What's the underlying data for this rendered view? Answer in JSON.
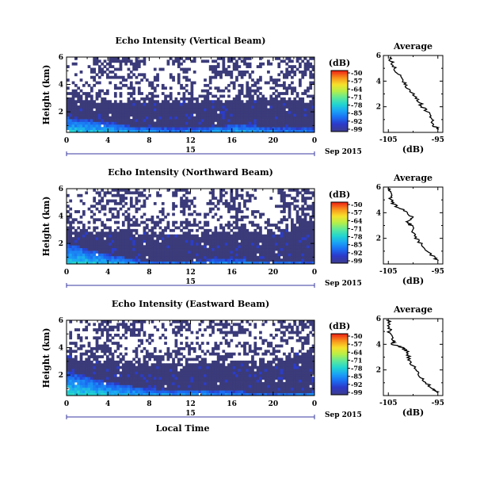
{
  "chart_data": [
    {
      "type": "heatmap",
      "title": "Echo Intensity (Vertical Beam)",
      "ylabel": "Height (km)",
      "x_ticks": [
        "0",
        "4",
        "8",
        "12",
        "16",
        "20",
        "0"
      ],
      "y_ticks": [
        "6",
        "4",
        "2"
      ],
      "date_day": "15",
      "date_month": "Sep 2015",
      "xlim": [
        0,
        24
      ],
      "ylim": [
        0.5,
        6
      ],
      "colorbar": {
        "unit": "(dB)",
        "ticks": [
          "-50",
          "-57",
          "-64",
          "-71",
          "-78",
          "-85",
          "-92",
          "-99"
        ]
      },
      "fill": {
        "dense_top": [
          3.0,
          2.8,
          2.7,
          2.7,
          2.8,
          2.9,
          3.0,
          2.6
        ],
        "sparse_top": 4.5,
        "strong_top": [
          1.6,
          1.3,
          0.9,
          0.8,
          0.9,
          1.1,
          0.8,
          0.8
        ]
      },
      "profile": {
        "title": "Average",
        "xlabel": "(dB)",
        "x_ticks": [
          "-105",
          "-95"
        ],
        "y_ticks": [
          "6",
          "4",
          "2"
        ],
        "xlim": [
          -106,
          -94
        ],
        "ylim": [
          0,
          6
        ],
        "height": [
          0.25,
          0.5,
          1.0,
          1.5,
          2.0,
          2.5,
          3.0,
          3.5,
          4.0,
          4.5,
          5.0,
          5.5,
          5.9
        ],
        "value": [
          -94.8,
          -95.7,
          -96.4,
          -97.0,
          -98.1,
          -99.0,
          -100.2,
          -101.3,
          -102.1,
          -102.9,
          -103.7,
          -104.3,
          -104.8
        ]
      }
    },
    {
      "type": "heatmap",
      "title": "Echo Intensity (Northward Beam)",
      "ylabel": "Height (km)",
      "x_ticks": [
        "0",
        "4",
        "8",
        "12",
        "16",
        "20",
        "0"
      ],
      "y_ticks": [
        "6",
        "4",
        "2"
      ],
      "date_day": "15",
      "date_month": "Sep 2015",
      "xlim": [
        0,
        24
      ],
      "ylim": [
        0.5,
        6
      ],
      "colorbar": {
        "unit": "(dB)",
        "ticks": [
          "-50",
          "-57",
          "-64",
          "-71",
          "-78",
          "-85",
          "-92",
          "-99"
        ]
      },
      "fill": {
        "dense_top": [
          3.0,
          2.8,
          2.7,
          2.6,
          2.6,
          2.8,
          2.7,
          3.6
        ],
        "sparse_top": 4.5,
        "strong_top": [
          2.0,
          1.3,
          0.8,
          0.7,
          0.8,
          0.8,
          0.7,
          0.7
        ]
      },
      "profile": {
        "title": "Average",
        "xlabel": "(dB)",
        "x_ticks": [
          "-105",
          "-95"
        ],
        "y_ticks": [
          "6",
          "4",
          "2"
        ],
        "xlim": [
          -106,
          -94
        ],
        "ylim": [
          0,
          6
        ],
        "height": [
          0.25,
          0.5,
          1.0,
          1.5,
          2.0,
          2.5,
          3.0,
          3.3,
          3.6,
          4.0,
          4.4,
          4.8,
          5.2,
          5.6,
          5.9
        ],
        "value": [
          -94.8,
          -95.8,
          -97.1,
          -98.4,
          -99.3,
          -100.1,
          -100.4,
          -101.2,
          -100.3,
          -100.9,
          -103.0,
          -104.2,
          -104.6,
          -104.9,
          -105.0
        ]
      }
    },
    {
      "type": "heatmap",
      "title": "Echo Intensity (Eastward Beam)",
      "ylabel": "Height (km)",
      "x_ticks": [
        "0",
        "4",
        "8",
        "12",
        "16",
        "20",
        "0"
      ],
      "y_ticks": [
        "6",
        "4",
        "2"
      ],
      "date_day": "15",
      "date_month": "Sep 2015",
      "xaxis_label": "Local Time",
      "xlim": [
        0,
        24
      ],
      "ylim": [
        0.5,
        6
      ],
      "colorbar": {
        "unit": "(dB)",
        "ticks": [
          "-50",
          "-57",
          "-64",
          "-71",
          "-78",
          "-85",
          "-92",
          "-99"
        ]
      },
      "fill": {
        "dense_top": [
          3.3,
          2.9,
          2.8,
          2.7,
          2.8,
          2.9,
          2.8,
          4.0
        ],
        "sparse_top": 4.8,
        "strong_top": [
          2.3,
          1.6,
          1.1,
          0.9,
          0.9,
          0.8,
          0.7,
          0.8
        ]
      },
      "profile": {
        "title": "Average",
        "xlabel": "(dB)",
        "x_ticks": [
          "-105",
          "-95"
        ],
        "y_ticks": [
          "6",
          "4",
          "2"
        ],
        "xlim": [
          -106,
          -94
        ],
        "ylim": [
          0,
          6
        ],
        "height": [
          0.25,
          0.5,
          1.0,
          1.5,
          2.0,
          2.5,
          3.0,
          3.5,
          3.8,
          4.0,
          4.3,
          4.8,
          5.3,
          5.9
        ],
        "value": [
          -94.9,
          -95.9,
          -97.3,
          -98.6,
          -99.5,
          -100.4,
          -101.0,
          -101.2,
          -102.6,
          -104.1,
          -104.0,
          -104.6,
          -104.9,
          -105.0
        ]
      }
    }
  ]
}
